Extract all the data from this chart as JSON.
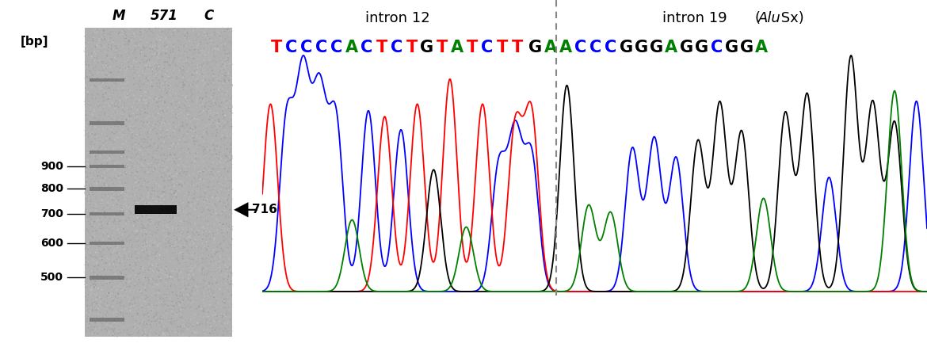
{
  "sequence_left": [
    {
      "char": "T",
      "color": "#ff0000"
    },
    {
      "char": "C",
      "color": "#0000ff"
    },
    {
      "char": "C",
      "color": "#0000ff"
    },
    {
      "char": "C",
      "color": "#0000ff"
    },
    {
      "char": "C",
      "color": "#0000ff"
    },
    {
      "char": "A",
      "color": "#008000"
    },
    {
      "char": "C",
      "color": "#0000ff"
    },
    {
      "char": "T",
      "color": "#ff0000"
    },
    {
      "char": "C",
      "color": "#0000ff"
    },
    {
      "char": "T",
      "color": "#ff0000"
    },
    {
      "char": "G",
      "color": "#000000"
    },
    {
      "char": "T",
      "color": "#ff0000"
    },
    {
      "char": "A",
      "color": "#008000"
    },
    {
      "char": "T",
      "color": "#ff0000"
    },
    {
      "char": "C",
      "color": "#0000ff"
    },
    {
      "char": "T",
      "color": "#ff0000"
    },
    {
      "char": "T",
      "color": "#ff0000"
    }
  ],
  "sequence_right": [
    {
      "char": "G",
      "color": "#000000"
    },
    {
      "char": "A",
      "color": "#008000"
    },
    {
      "char": "A",
      "color": "#008000"
    },
    {
      "char": "C",
      "color": "#0000ff"
    },
    {
      "char": "C",
      "color": "#0000ff"
    },
    {
      "char": "C",
      "color": "#0000ff"
    },
    {
      "char": "G",
      "color": "#000000"
    },
    {
      "char": "G",
      "color": "#000000"
    },
    {
      "char": "G",
      "color": "#000000"
    },
    {
      "char": "A",
      "color": "#008000"
    },
    {
      "char": "G",
      "color": "#000000"
    },
    {
      "char": "G",
      "color": "#000000"
    },
    {
      "char": "C",
      "color": "#0000ff"
    },
    {
      "char": "G",
      "color": "#000000"
    },
    {
      "char": "G",
      "color": "#000000"
    },
    {
      "char": "A",
      "color": "#008000"
    }
  ],
  "intron12_label": "intron 12",
  "intron19_label": "intron 19",
  "alu_label": " (Alu Sx)",
  "band_716_label": "716",
  "bp_labels": [
    "900",
    "800",
    "700",
    "600",
    "500"
  ],
  "fig_width": 11.7,
  "fig_height": 4.38,
  "dpi": 100
}
